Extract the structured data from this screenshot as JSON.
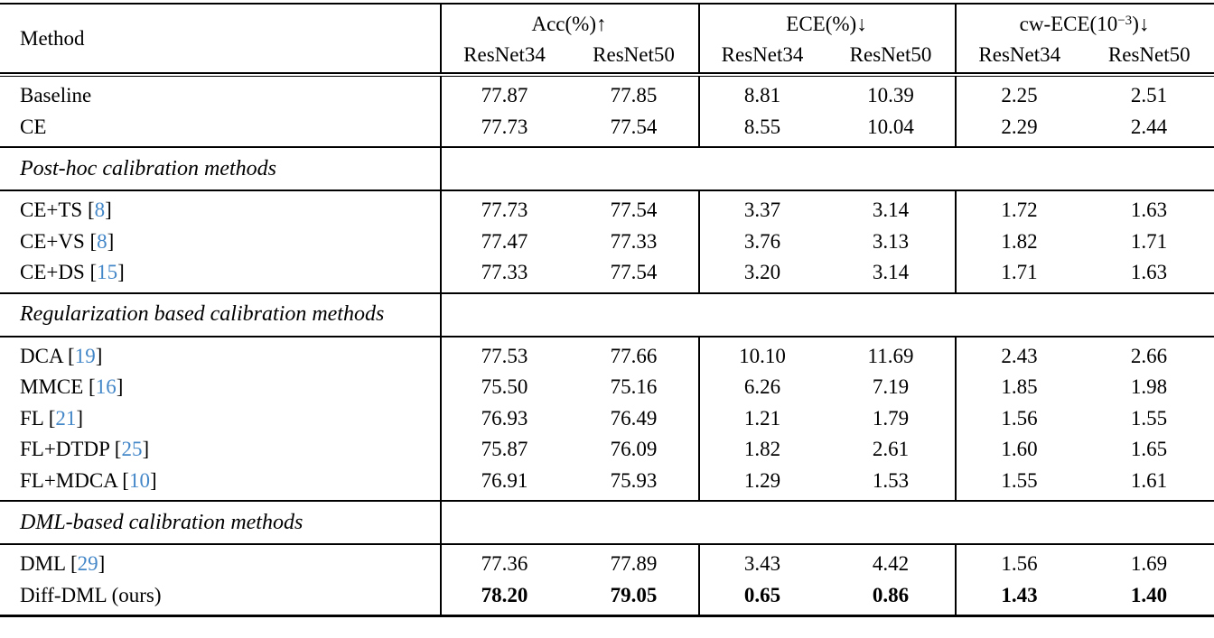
{
  "colors": {
    "text": "#000000",
    "citation": "#4487c8",
    "rule": "#000000",
    "background": "#ffffff"
  },
  "header": {
    "method_label": "Method",
    "groups": [
      {
        "key": "acc",
        "label": "Acc(%)↑",
        "sup": "",
        "tail": "",
        "sub": [
          "ResNet34",
          "ResNet50"
        ]
      },
      {
        "key": "ece",
        "label": "ECE(%)↓",
        "sup": "",
        "tail": "",
        "sub": [
          "ResNet34",
          "ResNet50"
        ]
      },
      {
        "key": "cw-ece",
        "label": "cw-ECE(10",
        "sup": "−3",
        "tail": ")↓",
        "sub": [
          "ResNet34",
          "ResNet50"
        ]
      }
    ]
  },
  "sections": [
    {
      "header": "",
      "rows": [
        {
          "pre": "Baseline",
          "cite": "",
          "post": "",
          "bold": false,
          "values": [
            "77.87",
            "77.85",
            "8.81",
            "10.39",
            "2.25",
            "2.51"
          ]
        },
        {
          "pre": "CE",
          "cite": "",
          "post": "",
          "bold": false,
          "values": [
            "77.73",
            "77.54",
            "8.55",
            "10.04",
            "2.29",
            "2.44"
          ]
        }
      ]
    },
    {
      "header": "Post-hoc calibration methods",
      "rows": [
        {
          "pre": "CE+TS [",
          "cite": "8",
          "post": "]",
          "bold": false,
          "values": [
            "77.73",
            "77.54",
            "3.37",
            "3.14",
            "1.72",
            "1.63"
          ]
        },
        {
          "pre": "CE+VS [",
          "cite": "8",
          "post": "]",
          "bold": false,
          "values": [
            "77.47",
            "77.33",
            "3.76",
            "3.13",
            "1.82",
            "1.71"
          ]
        },
        {
          "pre": "CE+DS [",
          "cite": "15",
          "post": "]",
          "bold": false,
          "values": [
            "77.33",
            "77.54",
            "3.20",
            "3.14",
            "1.71",
            "1.63"
          ]
        }
      ]
    },
    {
      "header": "Regularization based calibration methods",
      "rows": [
        {
          "pre": "DCA [",
          "cite": "19",
          "post": "]",
          "bold": false,
          "values": [
            "77.53",
            "77.66",
            "10.10",
            "11.69",
            "2.43",
            "2.66"
          ]
        },
        {
          "pre": "MMCE [",
          "cite": "16",
          "post": "]",
          "bold": false,
          "values": [
            "75.50",
            "75.16",
            "6.26",
            "7.19",
            "1.85",
            "1.98"
          ]
        },
        {
          "pre": "FL [",
          "cite": "21",
          "post": "]",
          "bold": false,
          "values": [
            "76.93",
            "76.49",
            "1.21",
            "1.79",
            "1.56",
            "1.55"
          ]
        },
        {
          "pre": "FL+DTDP [",
          "cite": "25",
          "post": "]",
          "bold": false,
          "values": [
            "75.87",
            "76.09",
            "1.82",
            "2.61",
            "1.60",
            "1.65"
          ]
        },
        {
          "pre": "FL+MDCA [",
          "cite": "10",
          "post": "]",
          "bold": false,
          "values": [
            "76.91",
            "75.93",
            "1.29",
            "1.53",
            "1.55",
            "1.61"
          ]
        }
      ]
    },
    {
      "header": "DML-based calibration methods",
      "rows": [
        {
          "pre": "DML [",
          "cite": "29",
          "post": "]",
          "bold": false,
          "values": [
            "77.36",
            "77.89",
            "3.43",
            "4.42",
            "1.56",
            "1.69"
          ]
        },
        {
          "pre": "Diff-DML (ours)",
          "cite": "",
          "post": "",
          "bold": true,
          "values": [
            "78.20",
            "79.05",
            "0.65",
            "0.86",
            "1.43",
            "1.40"
          ]
        }
      ]
    }
  ]
}
